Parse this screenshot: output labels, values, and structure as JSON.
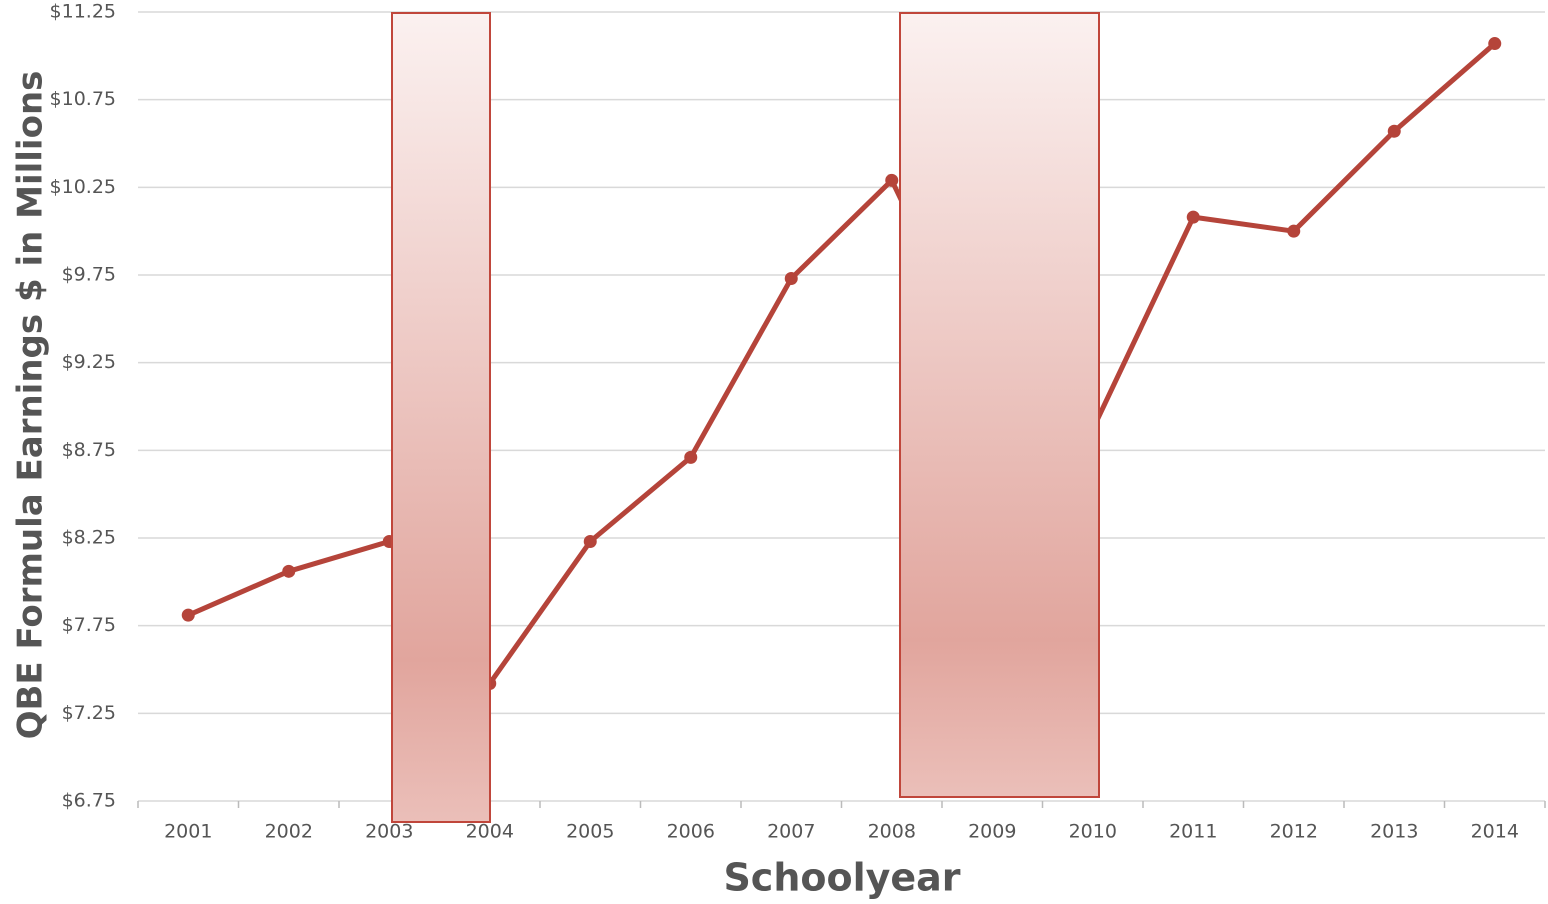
{
  "chart_data": {
    "type": "line",
    "x_label": "Schoolyear",
    "y_label": "QBE Formula Earnings $ in Millions",
    "categories": [
      "2001",
      "2002",
      "2003",
      "2004",
      "2005",
      "2006",
      "2007",
      "2008",
      "2009",
      "2010",
      "2011",
      "2012",
      "2013",
      "2014"
    ],
    "series": [
      {
        "color": "#b5443a",
        "values": [
          7.81,
          8.06,
          8.23,
          7.42,
          8.23,
          8.71,
          9.73,
          10.29,
          9.1,
          8.87,
          10.08,
          10.0,
          10.57,
          11.07
        ]
      }
    ],
    "ylim": [
      6.75,
      11.25
    ],
    "yticks": [
      {
        "value": 6.75,
        "label": "$6.75"
      },
      {
        "value": 7.25,
        "label": "$7.25"
      },
      {
        "value": 7.75,
        "label": "$7.75"
      },
      {
        "value": 8.25,
        "label": "$8.25"
      },
      {
        "value": 8.75,
        "label": "$8.75"
      },
      {
        "value": 9.25,
        "label": "$9.25"
      },
      {
        "value": 9.75,
        "label": "$9.75"
      },
      {
        "value": 10.25,
        "label": "$10.25"
      },
      {
        "value": 10.75,
        "label": "$10.75"
      },
      {
        "value": 11.25,
        "label": "$11.25"
      }
    ],
    "grid": true
  }
}
